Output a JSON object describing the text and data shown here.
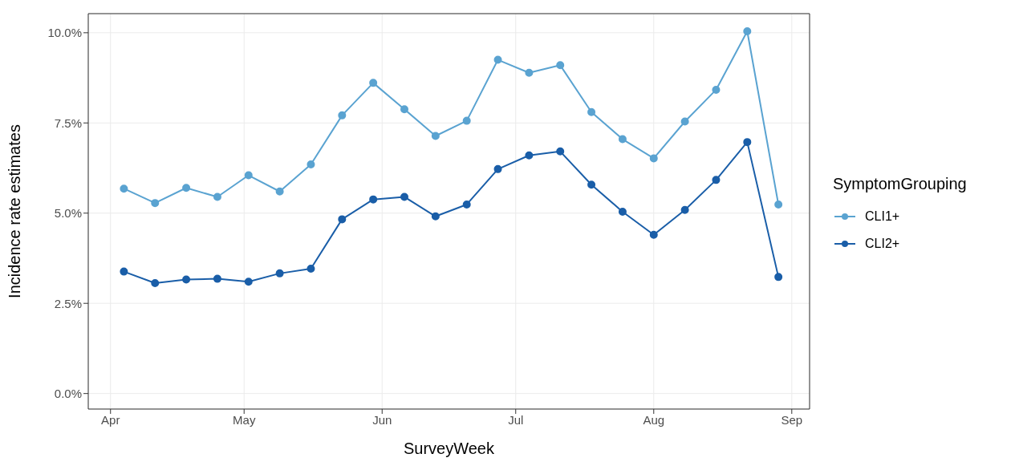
{
  "chart_data": {
    "type": "line",
    "xlabel": "SurveyWeek",
    "ylabel": "Incidence rate estimates",
    "legend_title": "SymptomGrouping",
    "x": [
      "--04-04",
      "--04-11",
      "--04-18",
      "--04-25",
      "--05-02",
      "--05-09",
      "--05-16",
      "--05-23",
      "--05-30",
      "--06-06",
      "--06-13",
      "--06-20",
      "--06-27",
      "--07-04",
      "--07-11",
      "--07-18",
      "--07-25",
      "--08-01",
      "--08-08",
      "--08-15",
      "--08-22",
      "--08-29"
    ],
    "series": [
      {
        "name": "CLI1+",
        "color": "#5aa3d1",
        "values": [
          5.68,
          5.28,
          5.7,
          5.45,
          6.05,
          5.6,
          6.35,
          7.71,
          8.61,
          7.88,
          7.14,
          7.56,
          9.25,
          8.89,
          9.1,
          7.8,
          7.05,
          6.52,
          7.54,
          8.42,
          10.04,
          5.24
        ]
      },
      {
        "name": "CLI2+",
        "color": "#1a5ea8",
        "values": [
          3.38,
          3.06,
          3.16,
          3.18,
          3.1,
          3.33,
          3.46,
          4.83,
          5.38,
          5.45,
          4.91,
          5.24,
          6.22,
          6.6,
          6.71,
          5.79,
          5.04,
          4.4,
          5.09,
          5.92,
          6.97,
          3.23
        ]
      }
    ],
    "xlim": [
      "--03-27",
      "--09-05"
    ],
    "xticks": [
      {
        "value": "--04-01",
        "label": "Apr"
      },
      {
        "value": "--05-01",
        "label": "May"
      },
      {
        "value": "--06-01",
        "label": "Jun"
      },
      {
        "value": "--07-01",
        "label": "Jul"
      },
      {
        "value": "--08-01",
        "label": "Aug"
      },
      {
        "value": "--09-01",
        "label": "Sep"
      }
    ],
    "ylim": [
      -0.43,
      10.53
    ],
    "yticks": [
      {
        "value": 0,
        "label": "0.0%"
      },
      {
        "value": 2.5,
        "label": "2.5%"
      },
      {
        "value": 5,
        "label": "5.0%"
      },
      {
        "value": 7.5,
        "label": "7.5%"
      },
      {
        "value": 10,
        "label": "10.0%"
      }
    ],
    "grid": true,
    "legend": "right",
    "marker": "circle",
    "line_style": "solid"
  }
}
